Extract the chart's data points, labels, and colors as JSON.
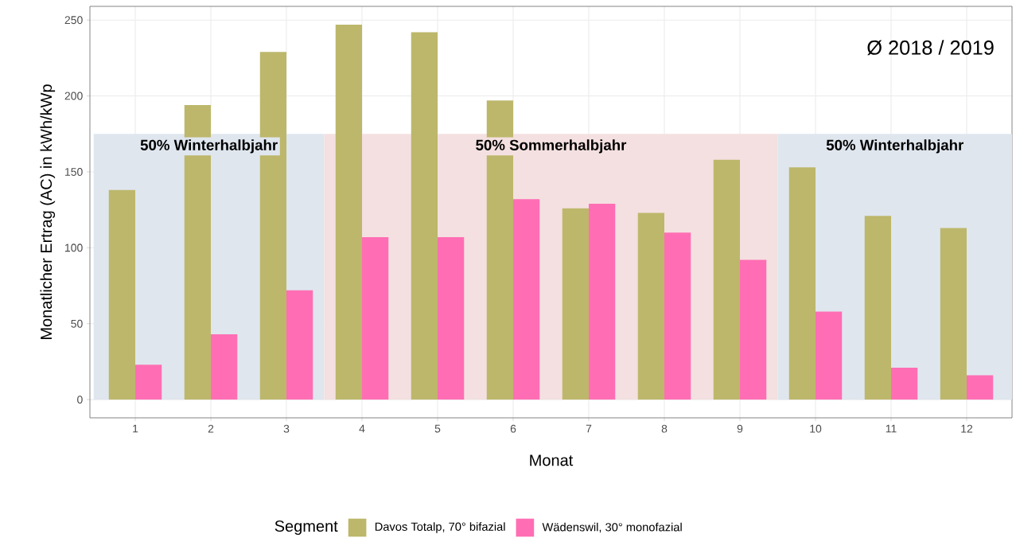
{
  "chart_data": {
    "type": "bar",
    "xlabel": "Monat",
    "ylabel": "Monatlicher Ertrag (AC) in kWh/kWp",
    "legend_title": "Segment",
    "x": [
      1,
      2,
      3,
      4,
      5,
      6,
      7,
      8,
      9,
      10,
      11,
      12
    ],
    "series": [
      {
        "name": "Davos Totalp, 70° bifazial",
        "color": "#bdb76b",
        "values": [
          138,
          194,
          229,
          247,
          242,
          197,
          126,
          123,
          158,
          153,
          121,
          113
        ]
      },
      {
        "name": "Wädenswil, 30° monofazial",
        "color": "#ff6eb4",
        "values": [
          23,
          43,
          72,
          107,
          107,
          132,
          129,
          110,
          92,
          58,
          21,
          16
        ]
      }
    ],
    "xlim": [
      0.4,
      12.6
    ],
    "ylim": [
      -12,
      259
    ],
    "xticks": [
      1,
      2,
      3,
      4,
      5,
      6,
      7,
      8,
      9,
      10,
      11,
      12
    ],
    "yticks": [
      0,
      50,
      100,
      150,
      200,
      250
    ],
    "bands": [
      {
        "axis": "x",
        "from": 0.45,
        "to": 3.5,
        "label": "50% Winterhalbjahr",
        "color": "#dfe6ee"
      },
      {
        "axis": "x",
        "from": 3.5,
        "to": 9.5,
        "label": "50% Sommerhalbjahr",
        "color": "#f4e0e0"
      },
      {
        "axis": "x",
        "from": 9.5,
        "to": 12.6,
        "label": "50% Winterhalbjahr",
        "color": "#dfe6ee"
      }
    ],
    "annotations": [
      "Ø 2018 / 2019"
    ],
    "grid": true,
    "legend": "bottom"
  }
}
